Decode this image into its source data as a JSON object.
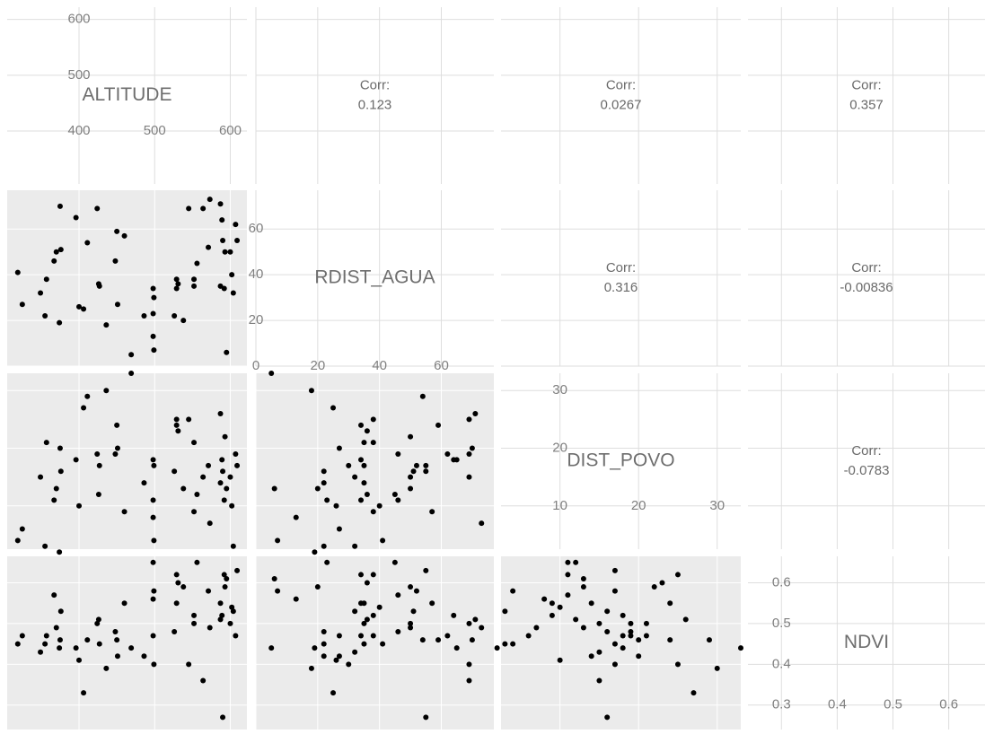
{
  "chart_data": {
    "type": "scatter-matrix",
    "variables": [
      {
        "name": "ALTITUDE",
        "lim": [
          305,
          622
        ],
        "ticks": [
          400,
          500,
          600
        ],
        "values": [
          319,
          325,
          349,
          355,
          357,
          367,
          370,
          374,
          375,
          376,
          396,
          400,
          406,
          411,
          424,
          426,
          427,
          436,
          448,
          450,
          451,
          460,
          469,
          486,
          498,
          499,
          498,
          499,
          498,
          529,
          529,
          526,
          531,
          538,
          552,
          552,
          556,
          545,
          564,
          571,
          573,
          587,
          589,
          587,
          593,
          592,
          595,
          600,
          602,
          604,
          607,
          609,
          590
        ]
      },
      {
        "name": "RDIST_AGUA",
        "lim": [
          0,
          77
        ],
        "ticks": [
          0,
          20,
          40,
          60
        ],
        "values": [
          41,
          27,
          32,
          22,
          38,
          46,
          50,
          19,
          70,
          51,
          65,
          26,
          25,
          54,
          69,
          36,
          35,
          18,
          46,
          59,
          27,
          57,
          5,
          22,
          34,
          30,
          13,
          7,
          23,
          34,
          38,
          22,
          36,
          20,
          38,
          35,
          45,
          69,
          69,
          52,
          73,
          71,
          64,
          35,
          50,
          34,
          6,
          50,
          40,
          32,
          62,
          55,
          55
        ]
      },
      {
        "name": "DIST_POVO",
        "lim": [
          2.5,
          33
        ],
        "ticks": [
          10,
          20,
          30
        ],
        "values": [
          4,
          6,
          15,
          3,
          21,
          11,
          13,
          2,
          20,
          16,
          18,
          10,
          27,
          29,
          19,
          12,
          17,
          30,
          19,
          24,
          20,
          9,
          33,
          14,
          18,
          17,
          8,
          4,
          11,
          24,
          25,
          16,
          23,
          13,
          9,
          21,
          12,
          25,
          15,
          17,
          7,
          26,
          18,
          14,
          22,
          11,
          13,
          15,
          10,
          3,
          19,
          17,
          16
        ]
      },
      {
        "name": "NDVI",
        "lim": [
          0.24,
          0.665
        ],
        "ticks": [
          0.3,
          0.4,
          0.5,
          0.6
        ],
        "values": [
          0.45,
          0.47,
          0.43,
          0.45,
          0.47,
          0.57,
          0.49,
          0.44,
          0.46,
          0.53,
          0.44,
          0.41,
          0.33,
          0.46,
          0.5,
          0.51,
          0.45,
          0.39,
          0.48,
          0.46,
          0.42,
          0.55,
          0.44,
          0.42,
          0.47,
          0.4,
          0.56,
          0.58,
          0.65,
          0.55,
          0.62,
          0.48,
          0.6,
          0.59,
          0.52,
          0.5,
          0.65,
          0.4,
          0.36,
          0.58,
          0.49,
          0.51,
          0.52,
          0.55,
          0.59,
          0.62,
          0.61,
          0.5,
          0.54,
          0.53,
          0.47,
          0.63,
          0.27
        ]
      }
    ],
    "correlations": [
      {
        "label": "Corr:",
        "value": 0.123
      },
      {
        "label": "Corr:",
        "value": 0.0267
      },
      {
        "label": "Corr:",
        "value": 0.357
      },
      {
        "label": "Corr:",
        "value": 0.316
      },
      {
        "label": "Corr:",
        "value": -0.00836
      },
      {
        "label": "Corr:",
        "value": -0.0783
      }
    ],
    "point_color": "#000000"
  }
}
